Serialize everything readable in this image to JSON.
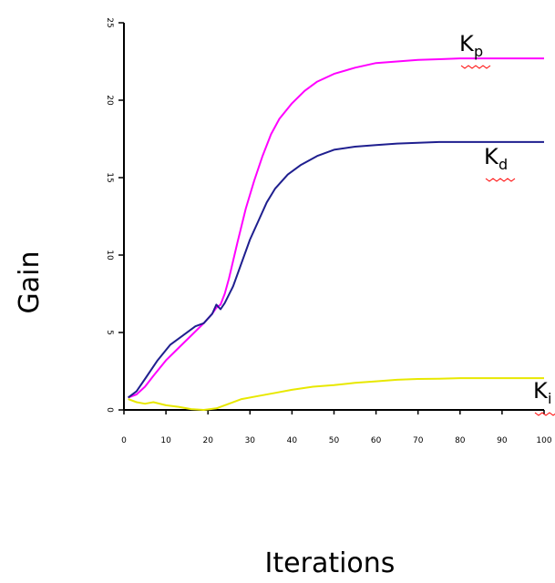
{
  "chart_data": {
    "type": "line",
    "xlabel": "Iterations",
    "ylabel": "Gain",
    "xlim": [
      0,
      100
    ],
    "ylim": [
      0,
      25
    ],
    "x_ticks": [
      0,
      10,
      20,
      30,
      40,
      50,
      60,
      70,
      80,
      90,
      100
    ],
    "y_ticks": [
      0,
      5,
      10,
      15,
      20,
      25
    ],
    "x_tick_labels": [
      "0",
      "10",
      "20",
      "30",
      "40",
      "50",
      "60",
      "70",
      "80",
      "90",
      "100"
    ],
    "y_tick_labels": [
      "0",
      "5",
      "10",
      "15",
      "20",
      "25"
    ],
    "grid": false,
    "series": [
      {
        "name": "Kp",
        "label_main": "K",
        "label_sub": "p",
        "color": "#ff00ff",
        "x": [
          1,
          3,
          5,
          7,
          10,
          13,
          16,
          19,
          21,
          22,
          23,
          24,
          25,
          27,
          29,
          31,
          33,
          35,
          37,
          40,
          43,
          46,
          50,
          55,
          60,
          65,
          70,
          75,
          80,
          85,
          90,
          95,
          100
        ],
        "y": [
          0.8,
          1.0,
          1.5,
          2.2,
          3.2,
          4.0,
          4.8,
          5.6,
          6.2,
          6.6,
          6.8,
          7.5,
          8.5,
          10.8,
          13.0,
          14.8,
          16.4,
          17.8,
          18.8,
          19.8,
          20.6,
          21.2,
          21.7,
          22.1,
          22.4,
          22.5,
          22.6,
          22.65,
          22.7,
          22.7,
          22.7,
          22.7,
          22.7
        ]
      },
      {
        "name": "Kd",
        "label_main": "K",
        "label_sub": "d",
        "color": "#1f1f8f",
        "x": [
          1,
          3,
          5,
          8,
          11,
          14,
          17,
          19,
          21,
          22,
          23,
          24,
          26,
          28,
          30,
          32,
          34,
          36,
          37,
          39,
          42,
          46,
          50,
          55,
          60,
          65,
          70,
          75,
          80,
          85,
          90,
          95,
          100
        ],
        "y": [
          0.8,
          1.2,
          2.0,
          3.2,
          4.2,
          4.8,
          5.4,
          5.6,
          6.2,
          6.8,
          6.5,
          6.9,
          8.0,
          9.5,
          11.0,
          12.2,
          13.4,
          14.3,
          14.6,
          15.2,
          15.8,
          16.4,
          16.8,
          17.0,
          17.1,
          17.2,
          17.25,
          17.3,
          17.3,
          17.3,
          17.3,
          17.3,
          17.3
        ]
      },
      {
        "name": "Ki",
        "label_main": "K",
        "label_sub": "i",
        "color": "#e8e800",
        "x": [
          1,
          3,
          5,
          7,
          10,
          13,
          16,
          19,
          22,
          25,
          28,
          32,
          36,
          40,
          45,
          50,
          55,
          60,
          65,
          70,
          75,
          80,
          85,
          90,
          95,
          100
        ],
        "y": [
          0.7,
          0.5,
          0.4,
          0.5,
          0.3,
          0.2,
          0.05,
          0.0,
          0.1,
          0.4,
          0.7,
          0.9,
          1.1,
          1.3,
          1.5,
          1.6,
          1.75,
          1.85,
          1.95,
          2.0,
          2.02,
          2.05,
          2.05,
          2.05,
          2.05,
          2.05
        ]
      }
    ]
  }
}
